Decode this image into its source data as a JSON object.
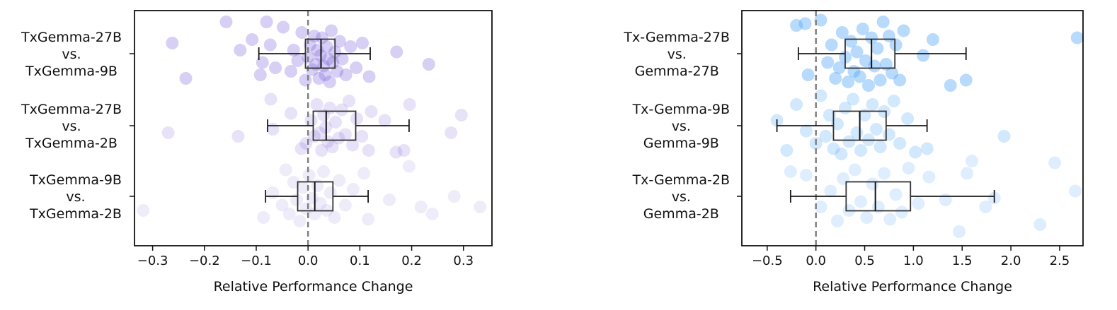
{
  "chart_data": [
    {
      "type": "scatter",
      "subtype": "box-strip",
      "title": "",
      "xlabel": "Relative Performance Change",
      "ylabel": "",
      "xlim": [
        -0.335,
        0.355
      ],
      "xticks": [
        -0.3,
        -0.2,
        -0.1,
        0.0,
        0.1,
        0.2,
        0.3
      ],
      "xtick_labels": [
        "−0.3",
        "−0.2",
        "−0.1",
        "0.0",
        "0.1",
        "0.2",
        "0.3"
      ],
      "reference_line": 0,
      "color": "#7b5fd9",
      "categories": [
        {
          "label": [
            "TxGemma-27B",
            "vs.",
            "TxGemma-9B"
          ],
          "opacity": 0.3,
          "box": {
            "whisker_low": -0.095,
            "q1": -0.005,
            "median": 0.025,
            "q3": 0.052,
            "whisker_high": 0.12
          },
          "points": [
            [
              -0.236,
              0.14
            ],
            [
              -0.262,
              -0.06
            ],
            [
              -0.158,
              -0.18
            ],
            [
              -0.131,
              -0.02
            ],
            [
              -0.108,
              -0.08
            ],
            [
              -0.092,
              0.12
            ],
            [
              -0.088,
              0.05
            ],
            [
              -0.08,
              -0.18
            ],
            [
              -0.073,
              -0.05
            ],
            [
              -0.063,
              0.08
            ],
            [
              -0.048,
              -0.15
            ],
            [
              -0.033,
              0.1
            ],
            [
              -0.028,
              -0.02
            ],
            [
              -0.02,
              0.04
            ],
            [
              -0.012,
              -0.12
            ],
            [
              -0.005,
              0.15
            ],
            [
              0.0,
              0.02
            ],
            [
              0.004,
              -0.05
            ],
            [
              0.008,
              0.09
            ],
            [
              0.012,
              -0.1
            ],
            [
              0.015,
              0.06
            ],
            [
              0.018,
              -0.02
            ],
            [
              0.021,
              0.14
            ],
            [
              0.024,
              0.01
            ],
            [
              0.027,
              -0.09
            ],
            [
              0.03,
              0.07
            ],
            [
              0.033,
              0.12
            ],
            [
              0.036,
              -0.04
            ],
            [
              0.039,
              0.03
            ],
            [
              0.042,
              0.16
            ],
            [
              0.045,
              -0.13
            ],
            [
              0.048,
              0.05
            ],
            [
              0.052,
              -0.01
            ],
            [
              0.056,
              0.1
            ],
            [
              0.061,
              -0.07
            ],
            [
              0.066,
              0.03
            ],
            [
              0.073,
              0.12
            ],
            [
              0.082,
              -0.04
            ],
            [
              0.093,
              0.08
            ],
            [
              0.105,
              -0.06
            ],
            [
              0.118,
              0.13
            ],
            [
              0.171,
              -0.01
            ],
            [
              0.233,
              0.06
            ]
          ]
        },
        {
          "label": [
            "TxGemma-27B",
            "vs.",
            "TxGemma-2B"
          ],
          "opacity": 0.18,
          "box": {
            "whisker_low": -0.078,
            "q1": 0.01,
            "median": 0.035,
            "q3": 0.092,
            "whisker_high": 0.195
          },
          "points": [
            [
              -0.27,
              0.04
            ],
            [
              -0.135,
              0.06
            ],
            [
              -0.072,
              -0.15
            ],
            [
              -0.068,
              0.02
            ],
            [
              -0.033,
              -0.07
            ],
            [
              -0.013,
              0.13
            ],
            [
              -0.004,
              0.1
            ],
            [
              0.006,
              -0.03
            ],
            [
              0.012,
              0.06
            ],
            [
              0.017,
              -0.12
            ],
            [
              0.022,
              0.04
            ],
            [
              0.026,
              0.14
            ],
            [
              0.03,
              -0.06
            ],
            [
              0.034,
              0.01
            ],
            [
              0.038,
              0.09
            ],
            [
              0.042,
              -0.1
            ],
            [
              0.047,
              0.12
            ],
            [
              0.053,
              -0.02
            ],
            [
              0.059,
              0.07
            ],
            [
              0.065,
              -0.09
            ],
            [
              0.072,
              0.05
            ],
            [
              0.079,
              -0.14
            ],
            [
              0.086,
              0.11
            ],
            [
              0.094,
              -0.04
            ],
            [
              0.104,
              0.06
            ],
            [
              0.117,
              0.14
            ],
            [
              0.122,
              -0.08
            ],
            [
              0.148,
              -0.03
            ],
            [
              0.17,
              0.15
            ],
            [
              0.185,
              0.14
            ],
            [
              0.196,
              -0.12
            ],
            [
              0.276,
              0.04
            ],
            [
              0.296,
              -0.06
            ]
          ]
        },
        {
          "label": [
            "TxGemma-9B",
            "vs.",
            "TxGemma-2B"
          ],
          "opacity": 0.12,
          "box": {
            "whisker_low": -0.082,
            "q1": -0.02,
            "median": 0.013,
            "q3": 0.048,
            "whisker_high": 0.116
          },
          "points": [
            [
              -0.318,
              0.08
            ],
            [
              -0.086,
              0.12
            ],
            [
              -0.068,
              -0.02
            ],
            [
              -0.05,
              0.05
            ],
            [
              -0.043,
              -0.15
            ],
            [
              -0.036,
              0.1
            ],
            [
              -0.028,
              -0.08
            ],
            [
              -0.022,
              0.02
            ],
            [
              -0.016,
              0.14
            ],
            [
              -0.01,
              -0.05
            ],
            [
              -0.004,
              0.07
            ],
            [
              0.002,
              -0.12
            ],
            [
              0.008,
              0.01
            ],
            [
              0.013,
              0.1
            ],
            [
              0.018,
              -0.06
            ],
            [
              0.024,
              0.04
            ],
            [
              0.03,
              -0.14
            ],
            [
              0.036,
              0.08
            ],
            [
              0.043,
              -0.02
            ],
            [
              0.051,
              0.12
            ],
            [
              0.06,
              -0.09
            ],
            [
              0.072,
              0.05
            ],
            [
              0.087,
              -0.04
            ],
            [
              0.108,
              -0.13
            ],
            [
              0.116,
              0.13
            ],
            [
              0.157,
              0.02
            ],
            [
              0.195,
              -0.17
            ],
            [
              0.218,
              0.06
            ],
            [
              0.24,
              0.1
            ],
            [
              0.282,
              0.0
            ],
            [
              0.332,
              0.06
            ]
          ]
        }
      ]
    },
    {
      "type": "scatter",
      "subtype": "box-strip",
      "title": "",
      "xlabel": "Relative Performance Change",
      "ylabel": "",
      "xlim": [
        -0.76,
        2.74
      ],
      "xticks": [
        -0.5,
        0.0,
        0.5,
        1.0,
        1.5,
        2.0,
        2.5
      ],
      "xtick_labels": [
        "−0.5",
        "0.0",
        "0.5",
        "1.0",
        "1.5",
        "2.0",
        "2.5"
      ],
      "reference_line": 0,
      "color": "#4da3f7",
      "categories": [
        {
          "label": [
            "Tx-Gemma-27B",
            "vs.",
            "Gemma-27B"
          ],
          "opacity": 0.4,
          "box": {
            "whisker_low": -0.18,
            "q1": 0.3,
            "median": 0.57,
            "q3": 0.81,
            "whisker_high": 1.54
          },
          "points": [
            [
              -0.2,
              -0.16
            ],
            [
              -0.11,
              -0.17
            ],
            [
              -0.08,
              0.12
            ],
            [
              0.05,
              -0.19
            ],
            [
              0.12,
              0.05
            ],
            [
              0.16,
              -0.05
            ],
            [
              0.2,
              0.14
            ],
            [
              0.24,
              0.08
            ],
            [
              0.27,
              -0.12
            ],
            [
              0.3,
              0.02
            ],
            [
              0.33,
              0.16
            ],
            [
              0.36,
              -0.07
            ],
            [
              0.39,
              0.1
            ],
            [
              0.42,
              -0.01
            ],
            [
              0.45,
              0.13
            ],
            [
              0.48,
              -0.14
            ],
            [
              0.51,
              0.04
            ],
            [
              0.54,
              0.18
            ],
            [
              0.57,
              -0.09
            ],
            [
              0.6,
              0.07
            ],
            [
              0.63,
              -0.03
            ],
            [
              0.66,
              0.15
            ],
            [
              0.69,
              -0.18
            ],
            [
              0.72,
              0.06
            ],
            [
              0.75,
              -0.1
            ],
            [
              0.78,
              0.11
            ],
            [
              0.82,
              -0.05
            ],
            [
              0.86,
              0.15
            ],
            [
              0.9,
              -0.13
            ],
            [
              1.1,
              0.01
            ],
            [
              1.2,
              -0.08
            ],
            [
              1.38,
              0.18
            ],
            [
              1.54,
              0.15
            ],
            [
              2.68,
              -0.09
            ]
          ]
        },
        {
          "label": [
            "Tx-Gemma-9B",
            "vs.",
            "Gemma-9B"
          ],
          "opacity": 0.25,
          "box": {
            "whisker_low": -0.4,
            "q1": 0.18,
            "median": 0.45,
            "q3": 0.72,
            "whisker_high": 1.14
          },
          "points": [
            [
              -0.4,
              -0.03
            ],
            [
              -0.3,
              0.14
            ],
            [
              -0.2,
              -0.12
            ],
            [
              -0.1,
              0.03
            ],
            [
              0.0,
              0.1
            ],
            [
              0.05,
              -0.17
            ],
            [
              0.1,
              0.06
            ],
            [
              0.14,
              -0.06
            ],
            [
              0.18,
              0.13
            ],
            [
              0.22,
              -0.01
            ],
            [
              0.26,
              0.16
            ],
            [
              0.3,
              -0.1
            ],
            [
              0.34,
              0.09
            ],
            [
              0.38,
              -0.15
            ],
            [
              0.42,
              0.04
            ],
            [
              0.46,
              0.14
            ],
            [
              0.5,
              -0.06
            ],
            [
              0.54,
              0.08
            ],
            [
              0.58,
              -0.12
            ],
            [
              0.62,
              0.02
            ],
            [
              0.66,
              0.12
            ],
            [
              0.7,
              -0.08
            ],
            [
              0.75,
              0.05
            ],
            [
              0.8,
              -0.14
            ],
            [
              0.86,
              0.1
            ],
            [
              0.94,
              -0.04
            ],
            [
              1.02,
              0.15
            ],
            [
              1.14,
              0.13
            ],
            [
              1.93,
              0.06
            ]
          ]
        },
        {
          "label": [
            "Tx-Gemma-2B",
            "vs.",
            "Gemma-2B"
          ],
          "opacity": 0.18,
          "box": {
            "whisker_low": -0.26,
            "q1": 0.31,
            "median": 0.61,
            "q3": 0.97,
            "whisker_high": 1.83
          },
          "points": [
            [
              -0.26,
              -0.14
            ],
            [
              -0.1,
              -0.12
            ],
            [
              0.05,
              0.06
            ],
            [
              0.15,
              -0.03
            ],
            [
              0.22,
              0.14
            ],
            [
              0.28,
              -0.1
            ],
            [
              0.34,
              0.08
            ],
            [
              0.4,
              -0.15
            ],
            [
              0.46,
              0.03
            ],
            [
              0.52,
              0.12
            ],
            [
              0.58,
              -0.07
            ],
            [
              0.64,
              0.06
            ],
            [
              0.7,
              -0.13
            ],
            [
              0.76,
              0.13
            ],
            [
              0.82,
              -0.01
            ],
            [
              0.88,
              0.09
            ],
            [
              0.95,
              -0.16
            ],
            [
              1.05,
              0.04
            ],
            [
              1.16,
              -0.11
            ],
            [
              1.33,
              0.02
            ],
            [
              1.47,
              0.2
            ],
            [
              1.55,
              -0.13
            ],
            [
              1.6,
              -0.2
            ],
            [
              1.74,
              0.06
            ],
            [
              1.83,
              0.01
            ],
            [
              2.3,
              0.16
            ],
            [
              2.45,
              -0.19
            ],
            [
              2.66,
              -0.03
            ]
          ]
        }
      ]
    }
  ]
}
